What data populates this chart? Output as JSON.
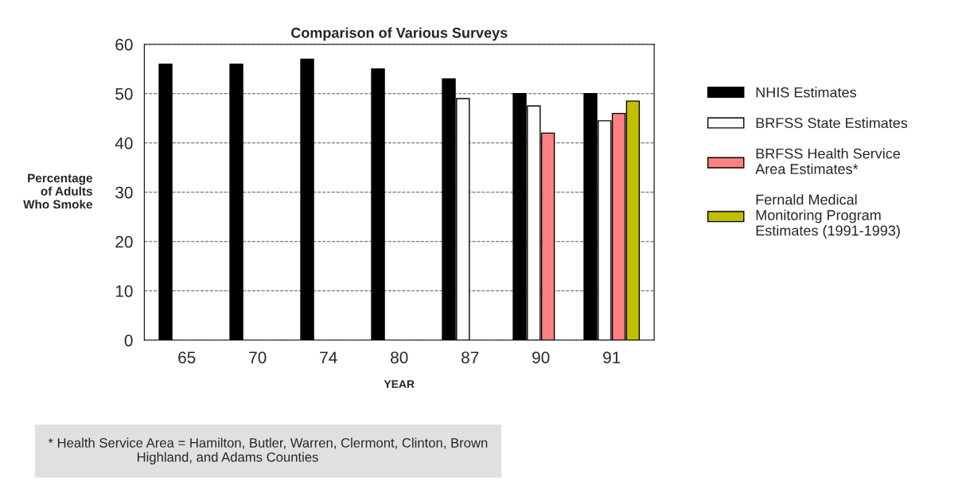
{
  "chart_data": {
    "type": "bar",
    "title": "Comparison of Various Surveys",
    "xlabel": "YEAR",
    "ylabel": "Percentage\nof Adults\nWho Smoke",
    "categories": [
      "65",
      "70",
      "74",
      "80",
      "87",
      "90",
      "91"
    ],
    "series": [
      {
        "name": "NHIS Estimates",
        "color": "#000000",
        "values": [
          56,
          56,
          57,
          55,
          53,
          50,
          50
        ]
      },
      {
        "name": "BRFSS State Estimates",
        "color": "#ffffff",
        "values": [
          null,
          null,
          null,
          null,
          49,
          47.5,
          44.5
        ]
      },
      {
        "name": "BRFSS Health Service Area Estimates*",
        "color": "#ff8080",
        "values": [
          null,
          null,
          null,
          null,
          null,
          42,
          46
        ]
      },
      {
        "name": "Fernald Medical Monitoring Program Estimates (1991-1993)",
        "color": "#c0c000",
        "values": [
          null,
          null,
          null,
          null,
          null,
          null,
          48.5
        ]
      }
    ],
    "ylim": [
      0,
      60
    ],
    "yticks": [
      0,
      10,
      20,
      30,
      40,
      50,
      60
    ],
    "grid": "y",
    "legend": "right",
    "annotations": [
      "* Health Service Area = Hamilton, Butler, Warren, Clermont, Clinton, Brown\n                        Highland, and Adams Counties"
    ]
  }
}
